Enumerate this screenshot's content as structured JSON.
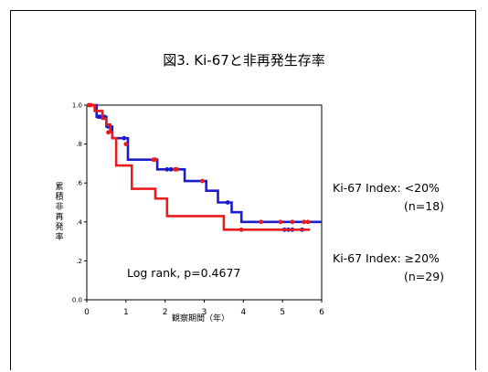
{
  "slide": {
    "title": "図3. Ki-67と非再発生存率"
  },
  "chart_data": {
    "type": "line",
    "step": true,
    "title": "図3. Ki-67と非再発生存率",
    "xlabel": "観察期間（年）",
    "ylabel": "累積非再発率",
    "xlim": [
      0,
      6
    ],
    "ylim": [
      0,
      1.0
    ],
    "x_ticks": [
      "0",
      "1",
      "2",
      "3",
      "4",
      "5",
      "6"
    ],
    "y_ticks": [
      "0.0",
      ".2",
      ".4",
      ".6",
      ".8",
      "1.0"
    ],
    "grid": false,
    "series": [
      {
        "name": "Ki-67 Index: <20%",
        "n_label": "(n=18)",
        "color": "#1c1cc8",
        "points": [
          [
            0,
            1.0
          ],
          [
            0.25,
            0.94
          ],
          [
            0.5,
            0.89
          ],
          [
            0.65,
            0.83
          ],
          [
            1.05,
            0.72
          ],
          [
            1.8,
            0.67
          ],
          [
            2.5,
            0.61
          ],
          [
            3.05,
            0.56
          ],
          [
            3.35,
            0.5
          ],
          [
            3.7,
            0.45
          ],
          [
            3.95,
            0.4
          ],
          [
            6,
            0.4
          ]
        ],
        "censored": [
          [
            0.3,
            0.94
          ],
          [
            0.35,
            0.94
          ],
          [
            0.45,
            0.94
          ],
          [
            0.55,
            0.89
          ],
          [
            0.95,
            0.83
          ],
          [
            2.05,
            0.67
          ],
          [
            2.15,
            0.67
          ],
          [
            3.6,
            0.5
          ],
          [
            5.05,
            0.36
          ],
          [
            5.15,
            0.36
          ],
          [
            5.25,
            0.36
          ],
          [
            5.5,
            0.36
          ]
        ]
      },
      {
        "name": "Ki-67 Index: ≥20%",
        "n_label": "(n=29)",
        "color": "#e81c1c",
        "points": [
          [
            0,
            1.0
          ],
          [
            0.2,
            0.97
          ],
          [
            0.4,
            0.93
          ],
          [
            0.5,
            0.9
          ],
          [
            0.6,
            0.86
          ],
          [
            0.65,
            0.83
          ],
          [
            0.75,
            0.69
          ],
          [
            1.1,
            0.69
          ],
          [
            1.15,
            0.57
          ],
          [
            1.65,
            0.57
          ],
          [
            1.75,
            0.52
          ],
          [
            2.05,
            0.43
          ],
          [
            3.45,
            0.43
          ],
          [
            3.5,
            0.36
          ],
          [
            5.7,
            0.36
          ]
        ],
        "censored": [
          [
            0.05,
            1.0
          ],
          [
            0.1,
            1.0
          ],
          [
            0.55,
            0.86
          ],
          [
            1.0,
            0.8
          ],
          [
            1.7,
            0.72
          ],
          [
            1.75,
            0.72
          ],
          [
            2.25,
            0.67
          ],
          [
            2.3,
            0.67
          ],
          [
            2.95,
            0.61
          ],
          [
            3.95,
            0.36
          ],
          [
            4.45,
            0.4
          ],
          [
            4.95,
            0.4
          ],
          [
            5.25,
            0.4
          ],
          [
            5.55,
            0.4
          ],
          [
            5.65,
            0.4
          ]
        ]
      }
    ],
    "annotation": "Log rank,   p=0.4677"
  }
}
